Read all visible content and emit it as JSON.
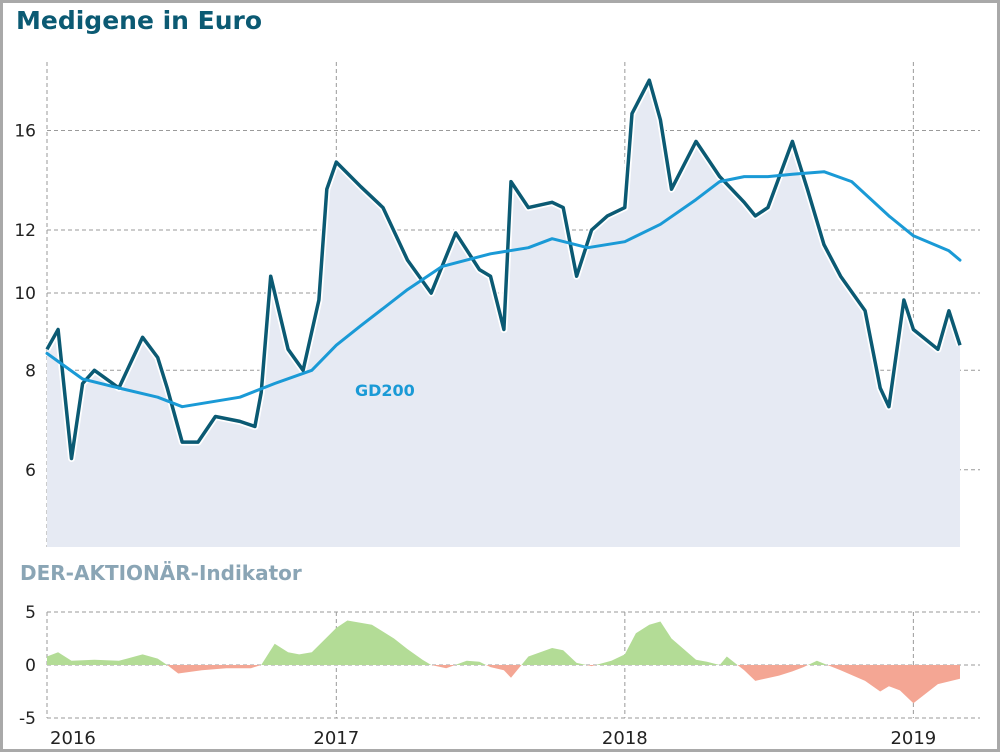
{
  "chart_data": [
    {
      "type": "line",
      "title": "Medigene in Euro",
      "y_scale": "log",
      "ylim": [
        4.8,
        19.5
      ],
      "yticks": [
        6,
        8,
        10,
        12,
        16
      ],
      "x_range": [
        "2016-01-01",
        "2019-03-01"
      ],
      "xticks": [
        "2016",
        "2017",
        "2018",
        "2019"
      ],
      "grid": true,
      "series": [
        {
          "name": "",
          "role": "price",
          "color": "#0b5a73",
          "fill": "#e6eaf3",
          "x": [
            "2016-01",
            "2016-01-15",
            "2016-02-01",
            "2016-02-15",
            "2016-03-01",
            "2016-04-01",
            "2016-05-01",
            "2016-05-20",
            "2016-06-01",
            "2016-06-20",
            "2016-07-10",
            "2016-08-01",
            "2016-09-01",
            "2016-09-20",
            "2016-09-28",
            "2016-10-10",
            "2016-11-01",
            "2016-11-20",
            "2016-12-10",
            "2016-12-20",
            "2017-01-01",
            "2017-02-01",
            "2017-03-01",
            "2017-04-01",
            "2017-05-01",
            "2017-06-01",
            "2017-07-01",
            "2017-07-15",
            "2017-08-01",
            "2017-08-10",
            "2017-09-01",
            "2017-10-01",
            "2017-10-15",
            "2017-11-01",
            "2017-11-20",
            "2017-12-10",
            "2018-01-01",
            "2018-01-10",
            "2018-02-01",
            "2018-02-15",
            "2018-03-01",
            "2018-04-01",
            "2018-05-01",
            "2018-06-01",
            "2018-06-15",
            "2018-07-01",
            "2018-08-01",
            "2018-08-20",
            "2018-09-10",
            "2018-10-01",
            "2018-11-01",
            "2018-11-20",
            "2018-12-01",
            "2018-12-20",
            "2019-01-01",
            "2019-02-01",
            "2019-02-15",
            "2019-03-01"
          ],
          "values": [
            8.5,
            9.0,
            6.2,
            7.7,
            8.0,
            7.6,
            8.8,
            8.3,
            7.6,
            6.5,
            6.5,
            7.0,
            6.9,
            6.8,
            7.5,
            10.5,
            8.5,
            8.0,
            9.8,
            13.5,
            14.6,
            13.6,
            12.8,
            11.0,
            10.0,
            11.9,
            10.7,
            10.5,
            9.0,
            13.8,
            12.8,
            13.0,
            12.8,
            10.5,
            12.0,
            12.5,
            12.8,
            16.8,
            18.5,
            16.5,
            13.5,
            15.5,
            14.0,
            13.0,
            12.5,
            12.8,
            15.5,
            13.5,
            11.5,
            10.5,
            9.5,
            7.6,
            7.2,
            9.8,
            9.0,
            8.5,
            9.5,
            8.6
          ]
        },
        {
          "name": "GD200",
          "role": "moving-average",
          "color": "#1a9ad6",
          "x": [
            "2016-01",
            "2016-02-15",
            "2016-04-01",
            "2016-05-20",
            "2016-06-20",
            "2016-09-01",
            "2016-10-15",
            "2016-12-01",
            "2017-01-01",
            "2017-02-01",
            "2017-04-01",
            "2017-05-15",
            "2017-07-15",
            "2017-09-01",
            "2017-10-01",
            "2017-11-15",
            "2018-01-01",
            "2018-02-15",
            "2018-04-01",
            "2018-05-01",
            "2018-06-01",
            "2018-07-01",
            "2018-08-01",
            "2018-09-10",
            "2018-10-15",
            "2018-12-01",
            "2019-01-01",
            "2019-02-15",
            "2019-03-01"
          ],
          "values": [
            8.4,
            7.8,
            7.6,
            7.4,
            7.2,
            7.4,
            7.7,
            8.0,
            8.6,
            9.1,
            10.1,
            10.8,
            11.2,
            11.4,
            11.7,
            11.4,
            11.6,
            12.2,
            13.1,
            13.8,
            14.0,
            14.0,
            14.1,
            14.2,
            13.8,
            12.5,
            11.8,
            11.3,
            11.0
          ]
        }
      ]
    },
    {
      "type": "area",
      "title": "DER-AKTIONÄR-Indikator",
      "ylim": [
        -5,
        5
      ],
      "yticks": [
        -5,
        0,
        5
      ],
      "xticks": [
        "2016",
        "2017",
        "2018",
        "2019"
      ],
      "grid": true,
      "colors": {
        "positive": "#b3dc96",
        "negative": "#f4a694"
      },
      "x": [
        "2016-01",
        "2016-01-15",
        "2016-02-01",
        "2016-03-01",
        "2016-04-01",
        "2016-05-01",
        "2016-05-20",
        "2016-06-01",
        "2016-06-15",
        "2016-07-15",
        "2016-08-15",
        "2016-09-15",
        "2016-09-28",
        "2016-10-15",
        "2016-11-01",
        "2016-11-15",
        "2016-12-01",
        "2017-01-01",
        "2017-01-15",
        "2017-02-15",
        "2017-03-15",
        "2017-04-01",
        "2017-04-20",
        "2017-05-01",
        "2017-05-20",
        "2017-06-15",
        "2017-07-01",
        "2017-07-15",
        "2017-08-01",
        "2017-08-10",
        "2017-09-01",
        "2017-10-01",
        "2017-10-15",
        "2017-11-01",
        "2017-11-20",
        "2017-12-15",
        "2018-01-01",
        "2018-01-15",
        "2018-02-01",
        "2018-02-15",
        "2018-03-01",
        "2018-04-01",
        "2018-04-15",
        "2018-05-01",
        "2018-05-10",
        "2018-06-01",
        "2018-06-15",
        "2018-07-15",
        "2018-08-01",
        "2018-08-15",
        "2018-09-01",
        "2018-10-01",
        "2018-11-01",
        "2018-11-20",
        "2018-12-01",
        "2018-12-15",
        "2019-01-01",
        "2019-02-01",
        "2019-03-01"
      ],
      "values": [
        0.8,
        1.2,
        0.4,
        0.5,
        0.4,
        1.0,
        0.6,
        0.0,
        -0.8,
        -0.5,
        -0.3,
        -0.3,
        0.0,
        2.0,
        1.2,
        1.0,
        1.2,
        3.5,
        4.2,
        3.8,
        2.5,
        1.5,
        0.5,
        0.0,
        -0.3,
        0.4,
        0.3,
        -0.2,
        -0.5,
        -1.2,
        0.8,
        1.6,
        1.4,
        0.2,
        -0.1,
        0.4,
        1.0,
        3.0,
        3.8,
        4.1,
        2.5,
        0.5,
        0.3,
        0.0,
        0.8,
        -0.5,
        -1.5,
        -1.0,
        -0.6,
        -0.2,
        0.4,
        -0.5,
        -1.5,
        -2.5,
        -2.0,
        -2.4,
        -3.6,
        -1.8,
        -1.3
      ]
    }
  ],
  "labels": {
    "title": "Medigene in Euro",
    "indicator_title": "DER-AKTIONÄR-Indikator",
    "gd200": "GD200"
  }
}
